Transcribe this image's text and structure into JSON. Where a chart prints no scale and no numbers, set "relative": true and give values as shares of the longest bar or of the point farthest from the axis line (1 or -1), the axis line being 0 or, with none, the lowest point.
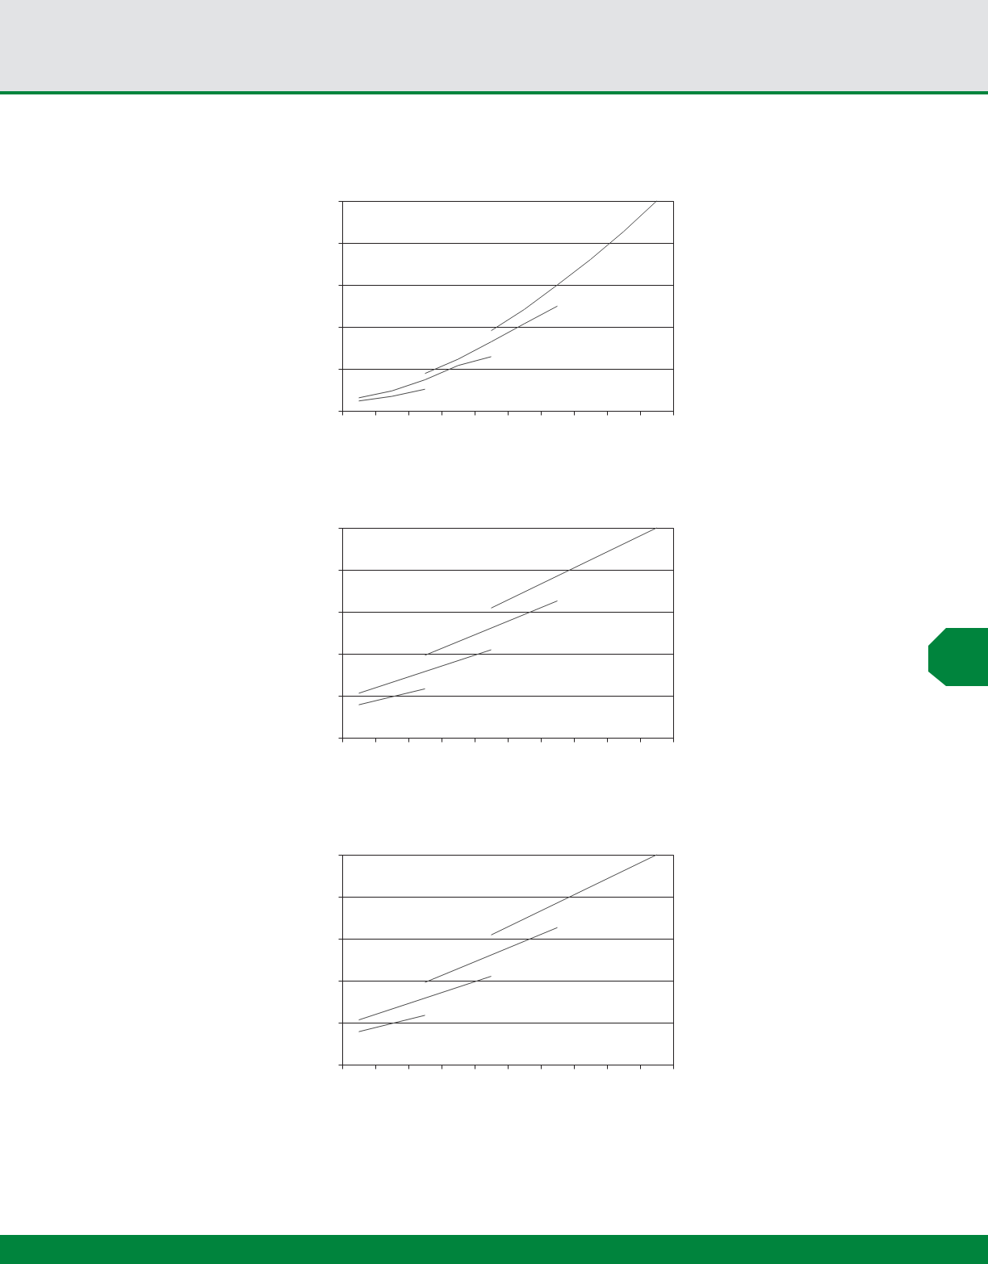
{
  "chart_data": [
    {
      "type": "line",
      "relative": true,
      "grid": "y",
      "categories": [
        null,
        null,
        null,
        null,
        null,
        null,
        null,
        null,
        null,
        null,
        null,
        null,
        null,
        null,
        null,
        null,
        null,
        null,
        null,
        null,
        null
      ],
      "series": [
        {
          "color": "#4a4a4a",
          "values": [
            null,
            0.047,
            null,
            0.069,
            null,
            0.103,
            null,
            null,
            null,
            null,
            null,
            null,
            null,
            null,
            null,
            null,
            null,
            null,
            null,
            null,
            null
          ]
        },
        {
          "color": "#4a4a4a",
          "values": [
            null,
            0.062,
            null,
            0.095,
            null,
            0.148,
            null,
            0.216,
            null,
            0.258,
            null,
            null,
            null,
            null,
            null,
            null,
            null,
            null,
            null,
            null,
            null
          ]
        },
        {
          "color": "#4a4a4a",
          "values": [
            null,
            null,
            null,
            null,
            null,
            0.178,
            null,
            0.246,
            null,
            0.329,
            null,
            0.415,
            null,
            0.499,
            null,
            null,
            null,
            null,
            null,
            null,
            null
          ]
        },
        {
          "color": "#4a4a4a",
          "values": [
            null,
            null,
            null,
            null,
            null,
            null,
            null,
            null,
            null,
            0.382,
            null,
            0.483,
            null,
            0.6,
            null,
            0.721,
            null,
            0.854,
            null,
            1,
            null
          ]
        }
      ]
    },
    {
      "type": "line",
      "relative": true,
      "grid": "y",
      "categories": [
        null,
        null,
        null,
        null,
        null,
        null,
        null,
        null,
        null,
        null,
        null,
        null,
        null,
        null,
        null,
        null,
        null,
        null,
        null,
        null,
        null
      ],
      "series": [
        {
          "color": "#4a4a4a",
          "values": [
            null,
            0.157,
            null,
            null,
            null,
            0.233,
            null,
            null,
            null,
            null,
            null,
            null,
            null,
            null,
            null,
            null,
            null,
            null,
            null,
            null,
            null
          ]
        },
        {
          "color": "#4a4a4a",
          "values": [
            null,
            0.212,
            null,
            null,
            null,
            null,
            null,
            null,
            null,
            0.419,
            null,
            null,
            null,
            null,
            null,
            null,
            null,
            null,
            null,
            null,
            null
          ]
        },
        {
          "color": "#4a4a4a",
          "values": [
            null,
            null,
            null,
            null,
            null,
            0.393,
            null,
            null,
            null,
            null,
            null,
            null,
            null,
            0.652,
            null,
            null,
            null,
            null,
            null,
            null,
            null
          ]
        },
        {
          "color": "#4a4a4a",
          "values": [
            null,
            null,
            null,
            null,
            null,
            null,
            null,
            null,
            null,
            0.618,
            null,
            null,
            null,
            null,
            null,
            null,
            null,
            null,
            null,
            1,
            null
          ]
        }
      ]
    },
    {
      "type": "line",
      "relative": true,
      "grid": "y",
      "categories": [
        null,
        null,
        null,
        null,
        null,
        null,
        null,
        null,
        null,
        null,
        null,
        null,
        null,
        null,
        null,
        null,
        null,
        null,
        null,
        null,
        null
      ],
      "series": [
        {
          "color": "#4a4a4a",
          "values": [
            null,
            0.157,
            null,
            null,
            null,
            0.235,
            null,
            null,
            null,
            null,
            null,
            null,
            null,
            null,
            null,
            null,
            null,
            null,
            null,
            null,
            null
          ]
        },
        {
          "color": "#4a4a4a",
          "values": [
            null,
            0.213,
            null,
            null,
            null,
            null,
            null,
            null,
            null,
            0.421,
            null,
            null,
            null,
            null,
            null,
            null,
            null,
            null,
            null,
            null,
            null
          ]
        },
        {
          "color": "#4a4a4a",
          "values": [
            null,
            null,
            null,
            null,
            null,
            0.392,
            null,
            null,
            null,
            null,
            null,
            null,
            null,
            0.653,
            null,
            null,
            null,
            null,
            null,
            null,
            null
          ]
        },
        {
          "color": "#4a4a4a",
          "values": [
            null,
            null,
            null,
            null,
            null,
            null,
            null,
            null,
            null,
            0.618,
            null,
            null,
            null,
            null,
            null,
            null,
            null,
            null,
            null,
            1,
            null
          ]
        }
      ]
    }
  ]
}
